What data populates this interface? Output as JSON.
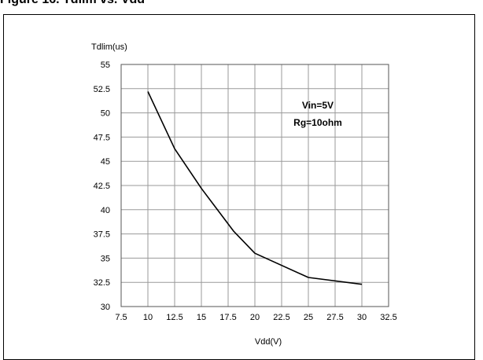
{
  "header": {
    "text": "Figure 16. Tdlim vs. Vdd"
  },
  "chart_data": {
    "type": "line",
    "title": "",
    "ylabel": "Tdlim(us)",
    "xlabel": "Vdd(V)",
    "xlim": [
      7.5,
      32.5
    ],
    "ylim": [
      30,
      55
    ],
    "x_ticks": [
      "7.5",
      "10",
      "12.5",
      "15",
      "17.5",
      "20",
      "22.5",
      "25",
      "27.5",
      "30",
      "32.5"
    ],
    "y_ticks": [
      "30",
      "32.5",
      "35",
      "37.5",
      "40",
      "42.5",
      "45",
      "47.5",
      "50",
      "52.5",
      "55"
    ],
    "grid": true,
    "annotations": [
      "Vin=5V",
      "Rg=10ohm"
    ],
    "series": [
      {
        "x": [
          10,
          12.5,
          15,
          18,
          20,
          25,
          30
        ],
        "y": [
          52.2,
          46.3,
          42.2,
          37.8,
          35.5,
          33.0,
          32.3
        ],
        "color": "#000000"
      }
    ]
  }
}
